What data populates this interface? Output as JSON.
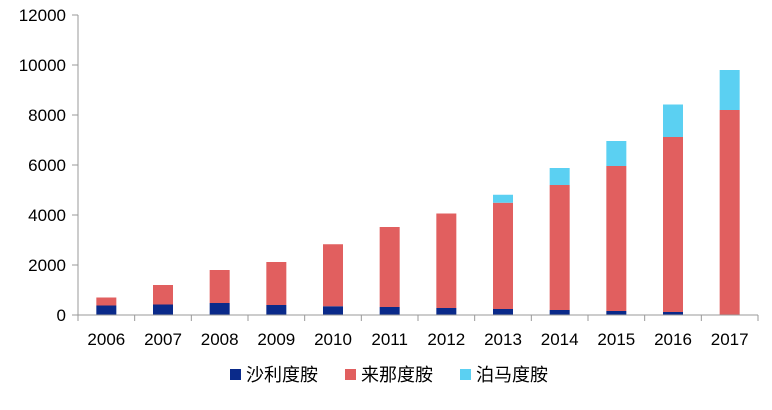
{
  "chart_data": {
    "type": "bar",
    "stacked": true,
    "categories": [
      "2006",
      "2007",
      "2008",
      "2009",
      "2010",
      "2011",
      "2012",
      "2013",
      "2014",
      "2015",
      "2016",
      "2017"
    ],
    "series": [
      {
        "name": "沙利度胺",
        "color": "#0a2a8a",
        "values": [
          380,
          420,
          480,
          400,
          350,
          320,
          280,
          240,
          200,
          160,
          120,
          0
        ]
      },
      {
        "name": "来那度胺",
        "color": "#e15f5f",
        "values": [
          320,
          780,
          1320,
          1720,
          2480,
          3200,
          3780,
          4250,
          5000,
          5800,
          7000,
          8200
        ]
      },
      {
        "name": "泊马度胺",
        "color": "#5bd0f2",
        "values": [
          0,
          0,
          0,
          0,
          0,
          0,
          0,
          320,
          680,
          1000,
          1300,
          1600
        ]
      }
    ],
    "ylim": [
      0,
      12000
    ],
    "yticks": [
      0,
      2000,
      4000,
      6000,
      8000,
      10000,
      12000
    ],
    "grid": false,
    "legend_position": "bottom"
  }
}
